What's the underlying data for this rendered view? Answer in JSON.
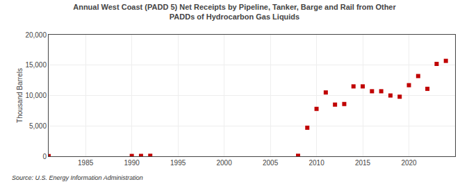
{
  "chart_data": {
    "type": "scatter",
    "title": "Annual West Coast (PADD 5) Net Receipts by Pipeline, Tanker, Barge and Rail from Other\nPADDs of Hydrocarbon Gas Liquids",
    "ylabel": "Thousand Barrels",
    "source": "Source: U.S. Energy Information Administration",
    "x": [
      1981,
      1990,
      1991,
      1992,
      2008,
      2009,
      2010,
      2011,
      2012,
      2013,
      2014,
      2015,
      2016,
      2017,
      2018,
      2019,
      2020,
      2021,
      2022,
      2023,
      2024
    ],
    "values": [
      30,
      50,
      60,
      80,
      80,
      4700,
      7800,
      10500,
      8500,
      8600,
      11500,
      11500,
      10700,
      10700,
      10000,
      9800,
      11700,
      13200,
      11100,
      15200,
      15700
    ],
    "color": "#c00000",
    "marker": "square",
    "xlim": [
      1981,
      2025
    ],
    "ylim": [
      0,
      20000
    ],
    "xticks": [
      1985,
      1990,
      1995,
      2000,
      2005,
      2010,
      2015,
      2020
    ],
    "yticks": [
      0,
      {
        "value": 5000,
        "label": "5,000"
      },
      {
        "value": 10000,
        "label": "10,000"
      },
      {
        "value": 15000,
        "label": "15,000"
      },
      {
        "value": 20000,
        "label": "20,000"
      }
    ],
    "grid": true
  }
}
